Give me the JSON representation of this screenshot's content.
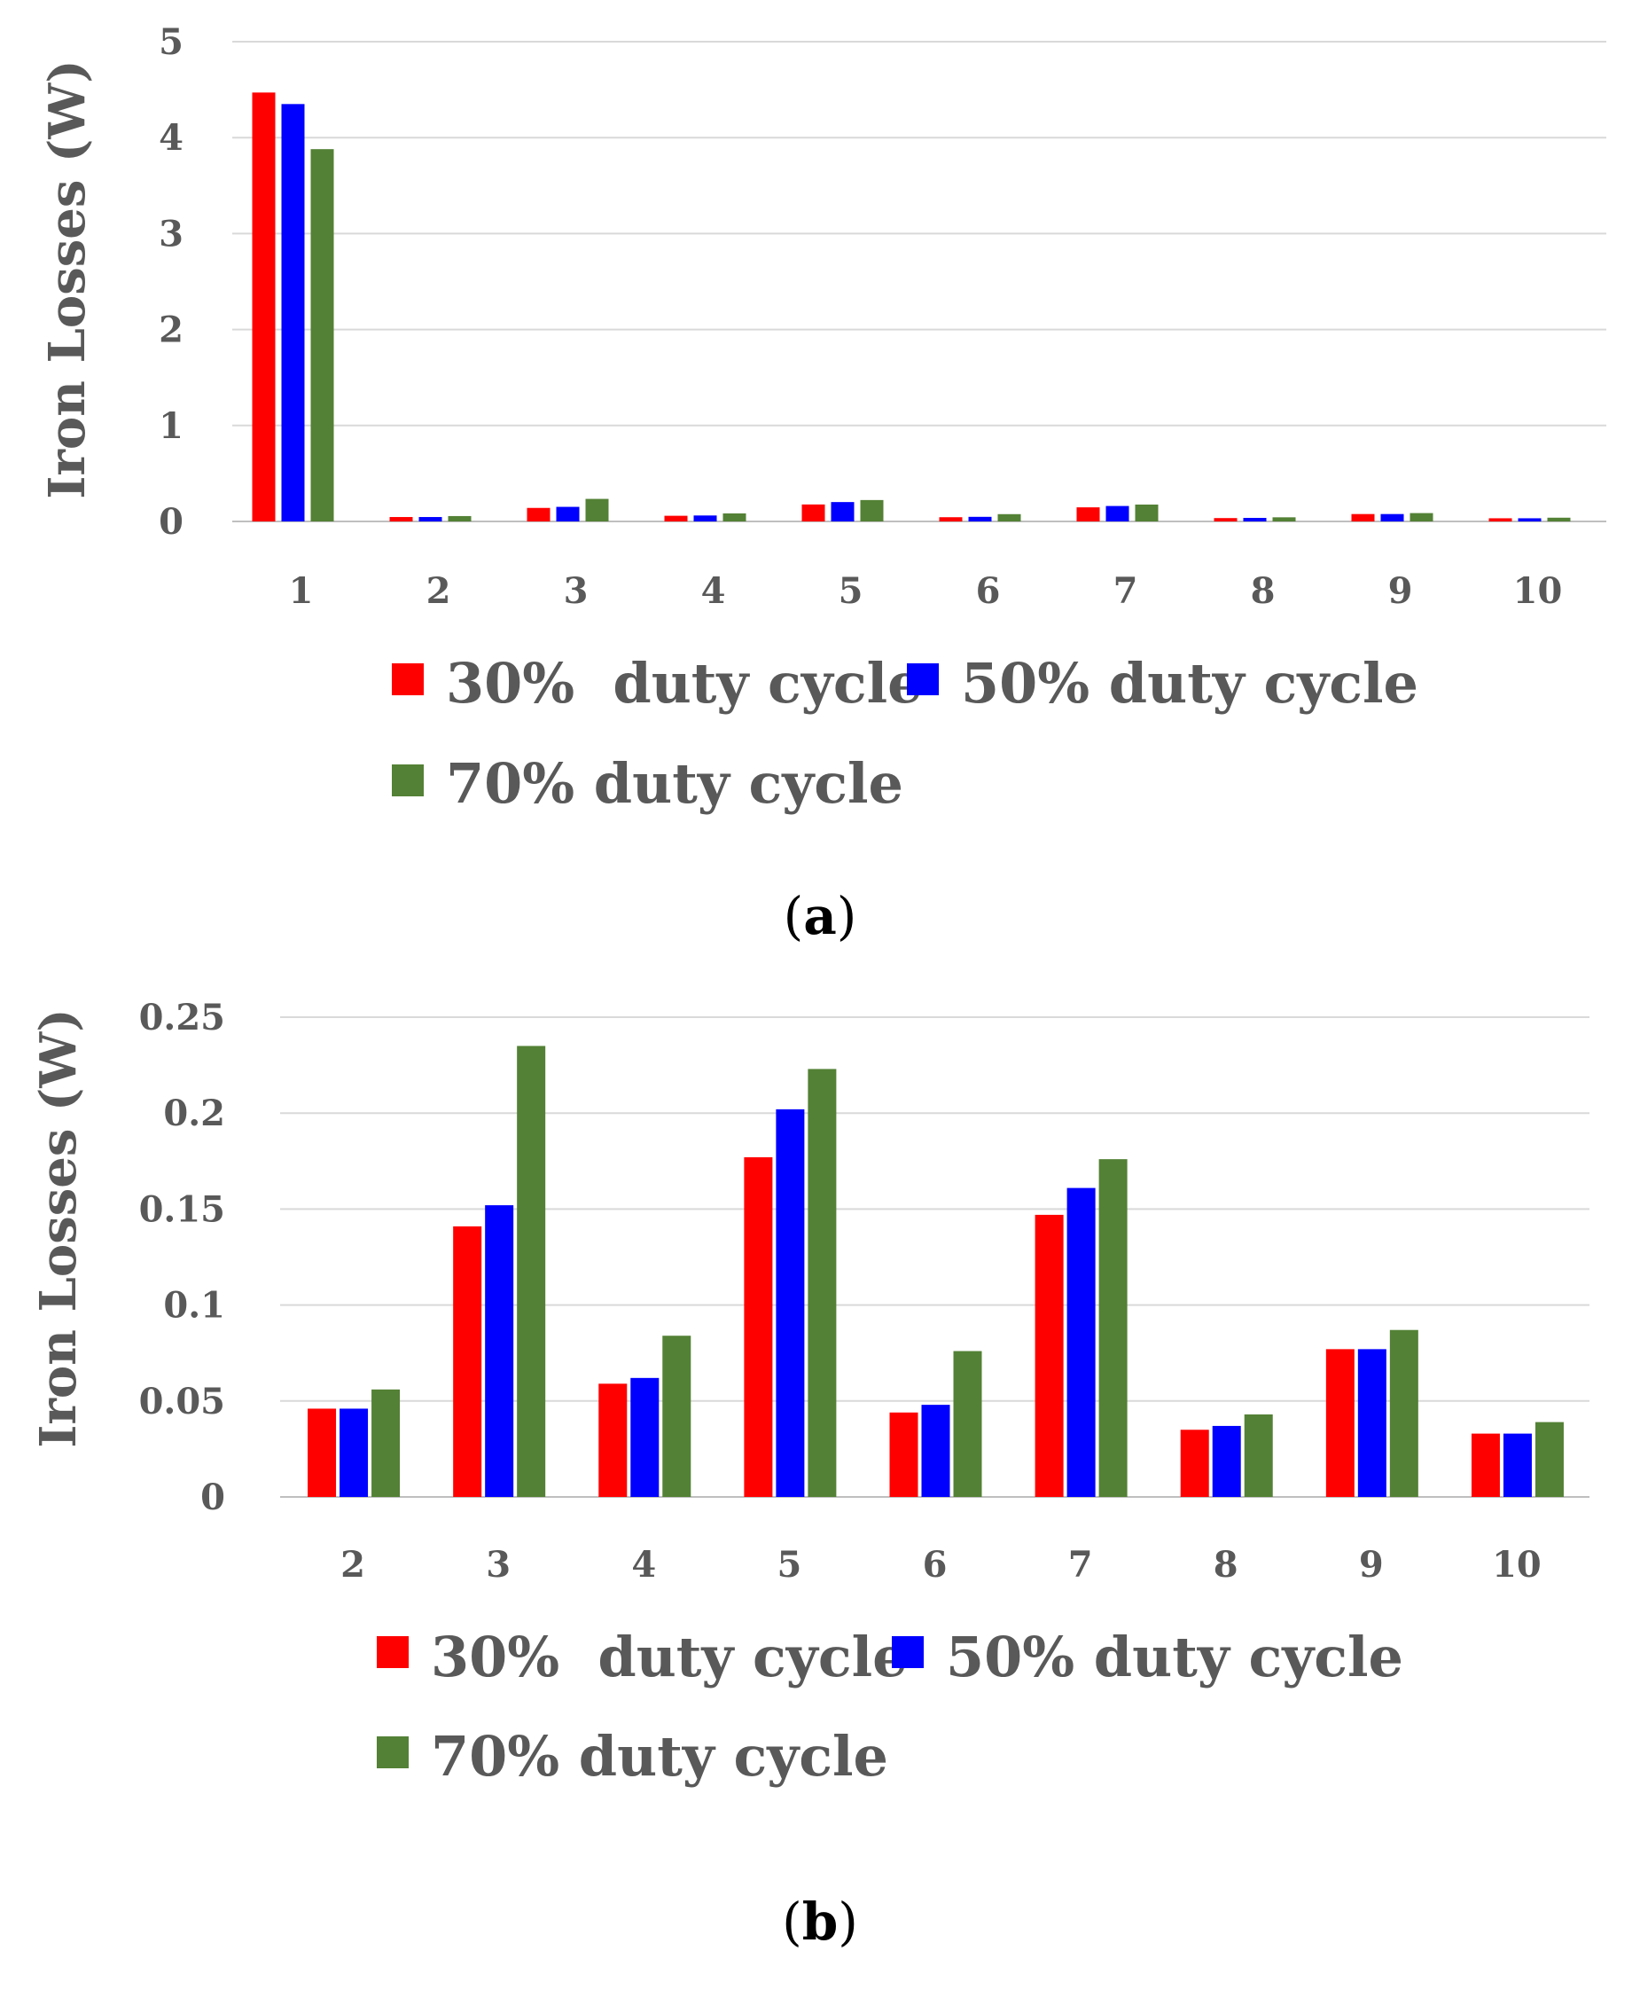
{
  "colors": {
    "s30": "#ff0000",
    "s50": "#0000ff",
    "s70": "#538135",
    "text": "#595959"
  },
  "chart_data": [
    {
      "type": "bar",
      "panel": "a",
      "caption": {
        "open": "(",
        "letter": "a",
        "close": ")"
      },
      "ylabel": "Iron Losses (W)",
      "xlabel": "",
      "ylim": [
        0,
        5
      ],
      "yticks": [
        0,
        1,
        2,
        3,
        4,
        5
      ],
      "ytick_labels": [
        "0",
        "1",
        "2",
        "3",
        "4",
        "5"
      ],
      "grid": true,
      "legend_position": "bottom",
      "categories": [
        "1",
        "2",
        "3",
        "4",
        "5",
        "6",
        "7",
        "8",
        "9",
        "10"
      ],
      "series": [
        {
          "name": "30%  duty cycle",
          "color": "#ff0000",
          "values": [
            4.47,
            0.046,
            0.141,
            0.059,
            0.177,
            0.044,
            0.147,
            0.035,
            0.077,
            0.033
          ]
        },
        {
          "name": "50% duty cycle",
          "color": "#0000ff",
          "values": [
            4.35,
            0.046,
            0.152,
            0.062,
            0.202,
            0.048,
            0.161,
            0.037,
            0.077,
            0.033
          ]
        },
        {
          "name": "70% duty cycle",
          "color": "#538135",
          "values": [
            3.88,
            0.056,
            0.235,
            0.084,
            0.223,
            0.076,
            0.176,
            0.043,
            0.087,
            0.039
          ]
        }
      ]
    },
    {
      "type": "bar",
      "panel": "b",
      "caption": {
        "open": "(",
        "letter": "b",
        "close": ")"
      },
      "ylabel": "Iron Losses (W)",
      "xlabel": "",
      "ylim": [
        0,
        0.25
      ],
      "yticks": [
        0,
        0.05,
        0.1,
        0.15,
        0.2,
        0.25
      ],
      "ytick_labels": [
        "0",
        "0.05",
        "0.1",
        "0.15",
        "0.2",
        "0.25"
      ],
      "grid": true,
      "legend_position": "bottom",
      "categories": [
        "2",
        "3",
        "4",
        "5",
        "6",
        "7",
        "8",
        "9",
        "10"
      ],
      "series": [
        {
          "name": "30%  duty cycle",
          "color": "#ff0000",
          "values": [
            0.046,
            0.141,
            0.059,
            0.177,
            0.044,
            0.147,
            0.035,
            0.077,
            0.033
          ]
        },
        {
          "name": "50% duty cycle",
          "color": "#0000ff",
          "values": [
            0.046,
            0.152,
            0.062,
            0.202,
            0.048,
            0.161,
            0.037,
            0.077,
            0.033
          ]
        },
        {
          "name": "70% duty cycle",
          "color": "#538135",
          "values": [
            0.056,
            0.235,
            0.084,
            0.223,
            0.076,
            0.176,
            0.043,
            0.087,
            0.039
          ]
        }
      ]
    }
  ]
}
